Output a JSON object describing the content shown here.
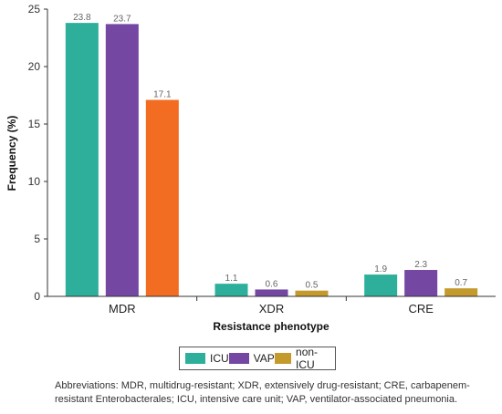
{
  "chart_data": {
    "type": "bar",
    "categories": [
      "MDR",
      "XDR",
      "CRE"
    ],
    "series": [
      {
        "name": "ICU",
        "values": [
          23.8,
          1.1,
          1.9
        ],
        "color": "#2eaf9c"
      },
      {
        "name": "VAP",
        "values": [
          23.7,
          0.6,
          2.3
        ],
        "color": "#7447a3"
      },
      {
        "name": "non-ICU",
        "values": [
          17.1,
          0.5,
          0.7
        ],
        "color": "#c49a2c"
      }
    ],
    "highlight_color": "#f26d21",
    "ylabel": "Frequency (%)",
    "xlabel": "Resistance phenotype",
    "ylim": [
      0,
      25
    ],
    "yticks": [
      0,
      5,
      10,
      15,
      20,
      25
    ],
    "grid": false,
    "legend_position": "bottom"
  },
  "footnote": "Abbreviations: MDR, multidrug-resistant; XDR, extensively drug-resistant; CRE, carbapenem-resistant Enterobacterales; ICU, intensive care unit; VAP, ventilator-associated pneumonia."
}
